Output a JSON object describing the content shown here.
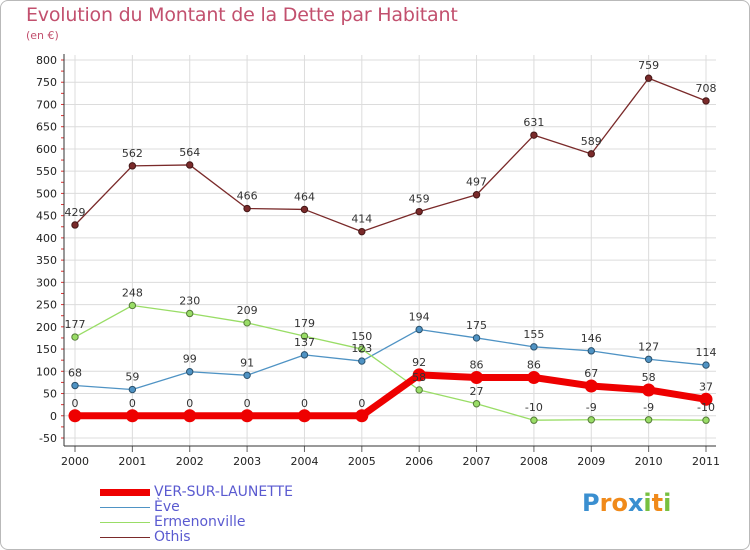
{
  "title": "Evolution du Montant de la Dette par Habitant",
  "subtitle": "(en €)",
  "logo": {
    "text": "Proxiti",
    "letters": [
      "P",
      "r",
      "o",
      "x",
      "i",
      "t",
      "i"
    ]
  },
  "chart_data": {
    "type": "line",
    "x": [
      "2000",
      "2001",
      "2002",
      "2003",
      "2004",
      "2005",
      "2006",
      "2007",
      "2008",
      "2009",
      "2010",
      "2011"
    ],
    "ylim": [
      -50,
      800
    ],
    "yticks": [
      -50,
      0,
      50,
      100,
      150,
      200,
      250,
      300,
      350,
      400,
      450,
      500,
      550,
      600,
      650,
      700,
      750,
      800
    ],
    "grid": true,
    "legend_position": "bottom-left",
    "series": [
      {
        "name": "VER-SUR-LAUNETTE",
        "color": "#ee0000",
        "values": [
          0,
          0,
          0,
          0,
          0,
          0,
          92,
          86,
          86,
          67,
          58,
          37
        ],
        "labels": [
          "0",
          "0",
          "0",
          "0",
          "0",
          "0",
          "92",
          "86",
          "86",
          "67",
          "58",
          "37"
        ]
      },
      {
        "name": "Ève",
        "color": "#4f93c4",
        "values": [
          68,
          59,
          99,
          91,
          137,
          123,
          194,
          175,
          155,
          146,
          127,
          114
        ],
        "labels": [
          "68",
          "59",
          "99",
          "91",
          "137",
          "123",
          "194",
          "175",
          "155",
          "146",
          "127",
          "114"
        ]
      },
      {
        "name": "Ermenonville",
        "color": "#99dd66",
        "values": [
          177,
          248,
          230,
          209,
          179,
          150,
          58,
          27,
          -10,
          -9,
          -9,
          -10
        ],
        "labels": [
          "177",
          "248",
          "230",
          "209",
          "179",
          "150",
          "58",
          "27",
          "-10",
          "-9",
          "-9",
          "-10"
        ]
      },
      {
        "name": "Othis",
        "color": "#7a2a2a",
        "values": [
          429,
          562,
          564,
          466,
          464,
          414,
          459,
          497,
          631,
          589,
          759,
          708
        ],
        "labels": [
          "429",
          "562",
          "564",
          "466",
          "464",
          "414",
          "459",
          "497",
          "631",
          "589",
          "759",
          "708"
        ]
      }
    ]
  }
}
